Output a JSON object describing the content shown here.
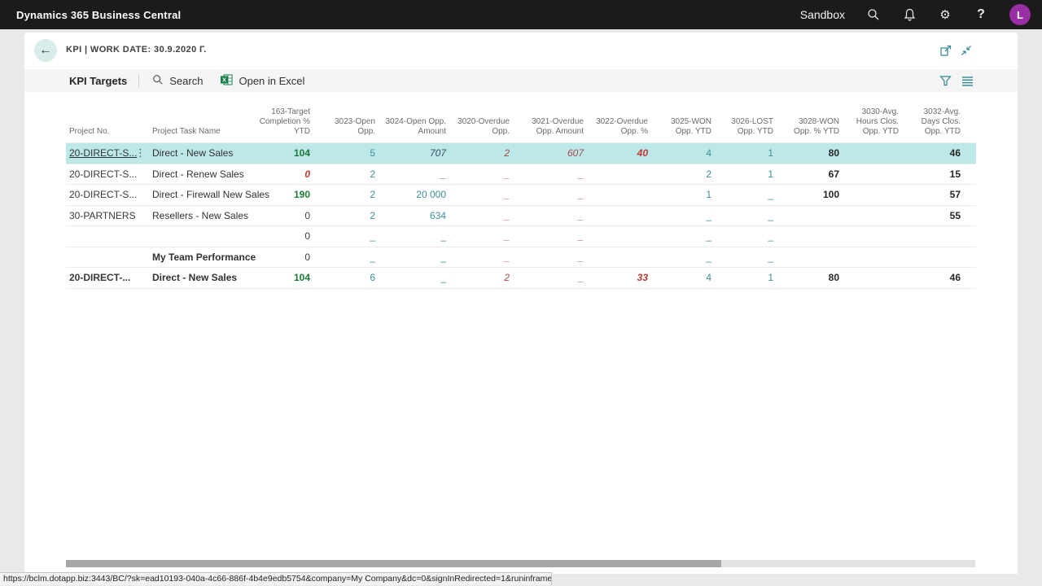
{
  "topbar": {
    "brand": "Dynamics 365 Business Central",
    "environment": "Sandbox",
    "help_label": "?",
    "avatar_initial": "L"
  },
  "page": {
    "title": "KPI | WORK DATE: 30.9.2020 г.",
    "list_caption": "KPI Targets",
    "search_label": "Search",
    "open_in_excel_label": "Open in Excel"
  },
  "icons": {
    "search": "magnifier",
    "notifications": "bell",
    "settings": "gear",
    "help": "?",
    "back": "←",
    "open_in_new_window": "popout-rect-arrow",
    "collapse": "inward-diagonal-arrows",
    "filter": "funnel",
    "view_options": "list-lines",
    "row_menu": "⋮",
    "excel": "green-x-sheet"
  },
  "colors": {
    "topbar_bg": "#1b1b1b",
    "avatar_bg": "#9a2fa5",
    "accent_teal": "#2e8690",
    "selected_row_bg": "#bce8e8",
    "favorable_green": "#1c7a38",
    "unfavorable_red": "#bf3a35",
    "value_teal": "#3b8f9b",
    "excel_green": "#107c41"
  },
  "table": {
    "columns": [
      {
        "id": "project-no",
        "label": "Project No."
      },
      {
        "id": "project-task-name",
        "label": "Project Task Name"
      },
      {
        "id": "163-target-completion-pct-ytd",
        "label": "163-Target\nCompletion %\nYTD"
      },
      {
        "id": "3023-open-opp",
        "label": "3023-Open\nOpp."
      },
      {
        "id": "3024-open-opp-amount",
        "label": "3024-Open Opp.\nAmount"
      },
      {
        "id": "3020-overdue-opp",
        "label": "3020-Overdue\nOpp."
      },
      {
        "id": "3021-overdue-opp-amount",
        "label": "3021-Overdue\nOpp. Amount"
      },
      {
        "id": "3022-overdue-opp-pct",
        "label": "3022-Overdue\nOpp. %"
      },
      {
        "id": "3025-won-opp-ytd",
        "label": "3025-WON\nOpp. YTD"
      },
      {
        "id": "3026-lost-opp-ytd",
        "label": "3026-LOST\nOpp. YTD"
      },
      {
        "id": "3028-won-opp-pct-ytd",
        "label": "3028-WON\nOpp. % YTD"
      },
      {
        "id": "3030-avg-hours-clos-opp-ytd",
        "label": "3030-Avg.\nHours Clos.\nOpp. YTD"
      },
      {
        "id": "3032-avg-days-clos-opp-ytd",
        "label": "3032-Avg.\nDays Clos.\nOpp. YTD"
      }
    ],
    "rows": [
      {
        "selected": true,
        "link": true,
        "ellipsis": true,
        "bold": false,
        "project_no": "20-DIRECT-S...",
        "task_name": "Direct - New Sales",
        "values": [
          {
            "t": "104",
            "s": "green-bold"
          },
          {
            "t": "5",
            "s": "teal"
          },
          {
            "t": "707",
            "s": "slate-italic"
          },
          {
            "t": "2",
            "s": "red-italic"
          },
          {
            "t": "607",
            "s": "red-italic"
          },
          {
            "t": "40",
            "s": "red-bold-italic"
          },
          {
            "t": "4",
            "s": "teal"
          },
          {
            "t": "1",
            "s": "teal"
          },
          {
            "t": "80",
            "s": "bold"
          },
          {
            "t": "",
            "s": ""
          },
          {
            "t": "46",
            "s": "bold"
          }
        ]
      },
      {
        "selected": false,
        "link": false,
        "ellipsis": false,
        "bold": false,
        "project_no": "20-DIRECT-S...",
        "task_name": "Direct - Renew Sales",
        "values": [
          {
            "t": "0",
            "s": "red-bold-italic"
          },
          {
            "t": "2",
            "s": "teal"
          },
          {
            "t": "_",
            "s": "slate-italic"
          },
          {
            "t": "_",
            "s": "red-italic"
          },
          {
            "t": "_",
            "s": "red-italic"
          },
          {
            "t": "",
            "s": ""
          },
          {
            "t": "2",
            "s": "teal"
          },
          {
            "t": "1",
            "s": "teal"
          },
          {
            "t": "67",
            "s": "bold"
          },
          {
            "t": "",
            "s": ""
          },
          {
            "t": "15",
            "s": "bold"
          }
        ]
      },
      {
        "selected": false,
        "link": false,
        "ellipsis": false,
        "bold": false,
        "project_no": "20-DIRECT-S...",
        "task_name": "Direct - Firewall New Sales",
        "values": [
          {
            "t": "190",
            "s": "green-bold"
          },
          {
            "t": "2",
            "s": "teal"
          },
          {
            "t": "20 000",
            "s": "teal"
          },
          {
            "t": "_",
            "s": "red-italic"
          },
          {
            "t": "_",
            "s": "red-italic"
          },
          {
            "t": "",
            "s": ""
          },
          {
            "t": "1",
            "s": "teal"
          },
          {
            "t": "_",
            "s": "teal"
          },
          {
            "t": "100",
            "s": "bold"
          },
          {
            "t": "",
            "s": ""
          },
          {
            "t": "57",
            "s": "bold"
          }
        ]
      },
      {
        "selected": false,
        "link": false,
        "ellipsis": false,
        "bold": false,
        "project_no": "30-PARTNERS",
        "task_name": "Resellers - New Sales",
        "values": [
          {
            "t": "0",
            "s": "plain"
          },
          {
            "t": "2",
            "s": "teal"
          },
          {
            "t": "634",
            "s": "teal"
          },
          {
            "t": "_",
            "s": "red-italic"
          },
          {
            "t": "_",
            "s": "red-italic"
          },
          {
            "t": "",
            "s": ""
          },
          {
            "t": "_",
            "s": "teal"
          },
          {
            "t": "_",
            "s": "teal"
          },
          {
            "t": "",
            "s": ""
          },
          {
            "t": "",
            "s": ""
          },
          {
            "t": "55",
            "s": "bold"
          }
        ]
      },
      {
        "selected": false,
        "link": false,
        "ellipsis": false,
        "bold": false,
        "project_no": "",
        "task_name": "",
        "values": [
          {
            "t": "0",
            "s": "plain"
          },
          {
            "t": "_",
            "s": "teal"
          },
          {
            "t": "_",
            "s": "teal"
          },
          {
            "t": "_",
            "s": "red-italic"
          },
          {
            "t": "_",
            "s": "red-italic"
          },
          {
            "t": "",
            "s": ""
          },
          {
            "t": "_",
            "s": "teal"
          },
          {
            "t": "_",
            "s": "teal"
          },
          {
            "t": "",
            "s": ""
          },
          {
            "t": "",
            "s": ""
          },
          {
            "t": "",
            "s": ""
          }
        ]
      },
      {
        "selected": false,
        "link": false,
        "ellipsis": false,
        "bold": true,
        "project_no": "",
        "task_name": "My Team Performance",
        "values": [
          {
            "t": "0",
            "s": "plain"
          },
          {
            "t": "_",
            "s": "teal"
          },
          {
            "t": "_",
            "s": "teal"
          },
          {
            "t": "_",
            "s": "red-italic"
          },
          {
            "t": "_",
            "s": "red-italic"
          },
          {
            "t": "",
            "s": ""
          },
          {
            "t": "_",
            "s": "teal"
          },
          {
            "t": "_",
            "s": "teal"
          },
          {
            "t": "",
            "s": ""
          },
          {
            "t": "",
            "s": ""
          },
          {
            "t": "",
            "s": ""
          }
        ]
      },
      {
        "selected": false,
        "link": false,
        "ellipsis": false,
        "bold": true,
        "project_no": "20-DIRECT-...",
        "task_name": "Direct - New Sales",
        "values": [
          {
            "t": "104",
            "s": "green-bold"
          },
          {
            "t": "6",
            "s": "teal"
          },
          {
            "t": "_",
            "s": "teal"
          },
          {
            "t": "2",
            "s": "red-italic"
          },
          {
            "t": "_",
            "s": "red-italic"
          },
          {
            "t": "33",
            "s": "red-bold-italic"
          },
          {
            "t": "4",
            "s": "teal"
          },
          {
            "t": "1",
            "s": "teal"
          },
          {
            "t": "80",
            "s": "bold"
          },
          {
            "t": "",
            "s": ""
          },
          {
            "t": "46",
            "s": "bold"
          }
        ]
      }
    ]
  },
  "statusbar": {
    "url": "https://bclm.dotapp.biz:3443/BC/?sk=ead10193-040a-4c66-886f-4b4e9edb5754&company=My Company&dc=0&signInRedirected=1&runinframe=1#"
  }
}
